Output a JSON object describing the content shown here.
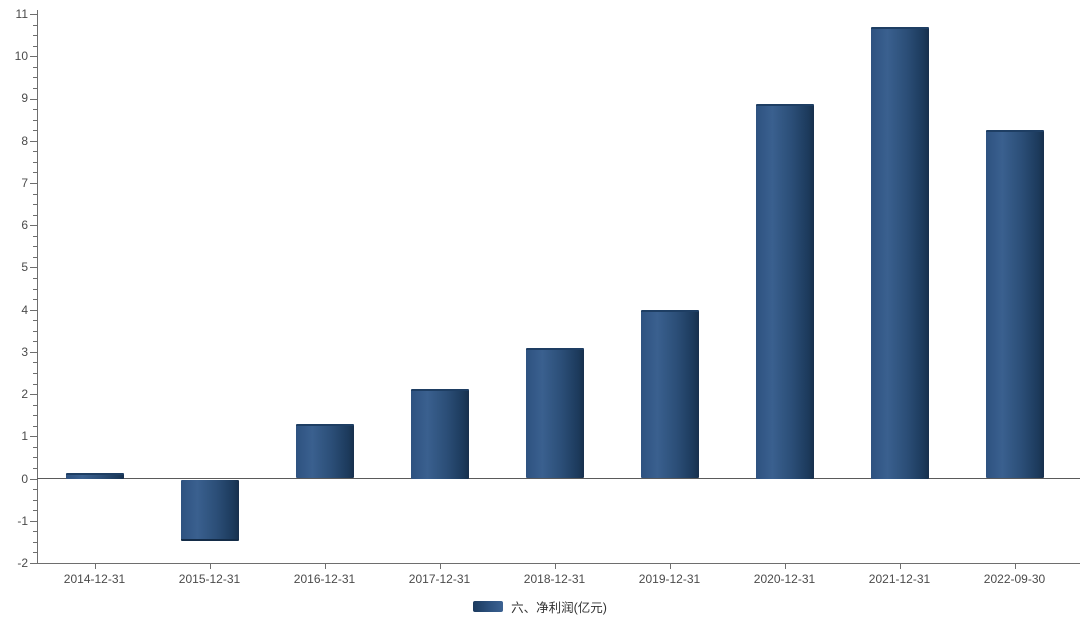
{
  "chart_data": {
    "type": "bar",
    "categories": [
      "2014-12-31",
      "2015-12-31",
      "2016-12-31",
      "2017-12-31",
      "2018-12-31",
      "2019-12-31",
      "2020-12-31",
      "2021-12-31",
      "2022-09-30"
    ],
    "values": [
      0.13,
      -1.45,
      1.3,
      2.12,
      3.1,
      4.0,
      8.87,
      10.7,
      8.25
    ],
    "title": "",
    "xlabel": "",
    "ylabel": "",
    "ylim": [
      -2,
      11
    ],
    "y_tick_step": 1,
    "y_minor_step": 0.25,
    "grid": false,
    "legend": {
      "position": "bottom",
      "label": "六、净利润(亿元)"
    },
    "colors": {
      "bar_main": "#2d517e",
      "bar_light": "#3a608f",
      "bar_dark": "#172f4c",
      "axis": "#6e6e6e",
      "text": "#4a4a4a"
    }
  }
}
